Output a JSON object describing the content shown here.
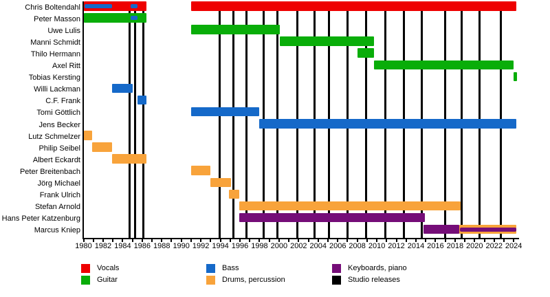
{
  "chart_data": {
    "type": "gantt",
    "description": "Band members timeline with instrument roles as horizontal bars (x = year) and studio releases as vertical black lines",
    "x_axis": {
      "min": 1980,
      "max": 2024,
      "tick_every": 1,
      "label_every": 2,
      "tick_labels": [
        "1980",
        "1982",
        "1984",
        "1986",
        "1988",
        "1990",
        "1992",
        "1994",
        "1996",
        "1998",
        "2000",
        "2002",
        "2004",
        "2006",
        "2008",
        "2010",
        "2012",
        "2014",
        "2016",
        "2018",
        "2020",
        "2022",
        "2024"
      ]
    },
    "roles": {
      "vocals": "#ee0000",
      "guitar": "#09ad09",
      "bass": "#1569c9",
      "drums": "#f8a33b",
      "keyboards": "#750d78",
      "releases": "#000000"
    },
    "members": [
      {
        "name": "Chris Boltendahl",
        "segments": [
          {
            "role": "vocals",
            "start": 1980.0,
            "end": 1986.4
          },
          {
            "role": "bass",
            "start": 1980.1,
            "end": 1982.9,
            "stripe": true
          },
          {
            "role": "bass",
            "start": 1984.8,
            "end": 1985.5,
            "stripe": true
          },
          {
            "role": "vocals",
            "start": 1991.0,
            "end": 2024.3
          }
        ]
      },
      {
        "name": "Peter Masson",
        "segments": [
          {
            "role": "guitar",
            "start": 1980.0,
            "end": 1986.4
          },
          {
            "role": "bass",
            "start": 1984.8,
            "end": 1985.5,
            "stripe": true
          }
        ]
      },
      {
        "name": "Uwe Lulis",
        "segments": [
          {
            "role": "guitar",
            "start": 1991.0,
            "end": 2000.1
          }
        ]
      },
      {
        "name": "Manni Schmidt",
        "segments": [
          {
            "role": "guitar",
            "start": 2000.1,
            "end": 2009.7
          }
        ]
      },
      {
        "name": "Thilo Hermann",
        "segments": [
          {
            "role": "guitar",
            "start": 2008.0,
            "end": 2009.7
          }
        ]
      },
      {
        "name": "Axel Ritt",
        "segments": [
          {
            "role": "guitar",
            "start": 2009.7,
            "end": 2024.0
          }
        ]
      },
      {
        "name": "Tobias Kersting",
        "segments": [
          {
            "role": "guitar",
            "start": 2024.0,
            "end": 2024.35
          }
        ]
      },
      {
        "name": "Willi Lackman",
        "segments": [
          {
            "role": "bass",
            "start": 1982.9,
            "end": 1985.0
          }
        ]
      },
      {
        "name": "C.F. Frank",
        "segments": [
          {
            "role": "bass",
            "start": 1985.5,
            "end": 1986.4
          }
        ]
      },
      {
        "name": "Tomi Göttlich",
        "segments": [
          {
            "role": "bass",
            "start": 1991.0,
            "end": 1998.0
          }
        ]
      },
      {
        "name": "Jens Becker",
        "segments": [
          {
            "role": "bass",
            "start": 1998.0,
            "end": 2024.3
          }
        ]
      },
      {
        "name": "Lutz Schmelzer",
        "segments": [
          {
            "role": "drums",
            "start": 1980.0,
            "end": 1980.9
          }
        ]
      },
      {
        "name": "Philip Seibel",
        "segments": [
          {
            "role": "drums",
            "start": 1980.9,
            "end": 1982.9
          }
        ]
      },
      {
        "name": "Albert Eckardt",
        "segments": [
          {
            "role": "drums",
            "start": 1982.9,
            "end": 1986.4
          }
        ]
      },
      {
        "name": "Peter Breitenbach",
        "segments": [
          {
            "role": "drums",
            "start": 1991.0,
            "end": 1993.0
          }
        ]
      },
      {
        "name": "Jörg Michael",
        "segments": [
          {
            "role": "drums",
            "start": 1993.0,
            "end": 1995.1
          }
        ]
      },
      {
        "name": "Frank Ulrich",
        "segments": [
          {
            "role": "drums",
            "start": 1994.9,
            "end": 1995.9
          }
        ]
      },
      {
        "name": "Stefan Arnold",
        "segments": [
          {
            "role": "drums",
            "start": 1995.9,
            "end": 2018.6
          }
        ]
      },
      {
        "name": "Hans Peter Katzenburg",
        "segments": [
          {
            "role": "keyboards",
            "start": 1995.9,
            "end": 2014.9
          }
        ]
      },
      {
        "name": "Marcus Kniep",
        "segments": [
          {
            "role": "keyboards",
            "start": 2014.8,
            "end": 2018.45
          },
          {
            "role": "drums",
            "start": 2018.45,
            "end": 2024.3
          },
          {
            "role": "keyboards",
            "start": 2018.5,
            "end": 2024.25,
            "stripe": true
          }
        ]
      }
    ],
    "studio_releases": [
      1984.7,
      1985.3,
      1986.1,
      1993.9,
      1995.3,
      1996.7,
      1998.4,
      1999.8,
      2001.9,
      2003.6,
      2005.1,
      2007.0,
      2008.9,
      2010.9,
      2012.8,
      2014.6,
      2017.0,
      2018.7,
      2020.5,
      2022.7
    ],
    "legend": [
      {
        "label": "Vocals",
        "role": "vocals"
      },
      {
        "label": "Guitar",
        "role": "guitar"
      },
      {
        "label": "Bass",
        "role": "bass"
      },
      {
        "label": "Drums, percussion",
        "role": "drums"
      },
      {
        "label": "Keyboards, piano",
        "role": "keyboards"
      },
      {
        "label": "Studio releases",
        "role": "releases"
      }
    ]
  }
}
